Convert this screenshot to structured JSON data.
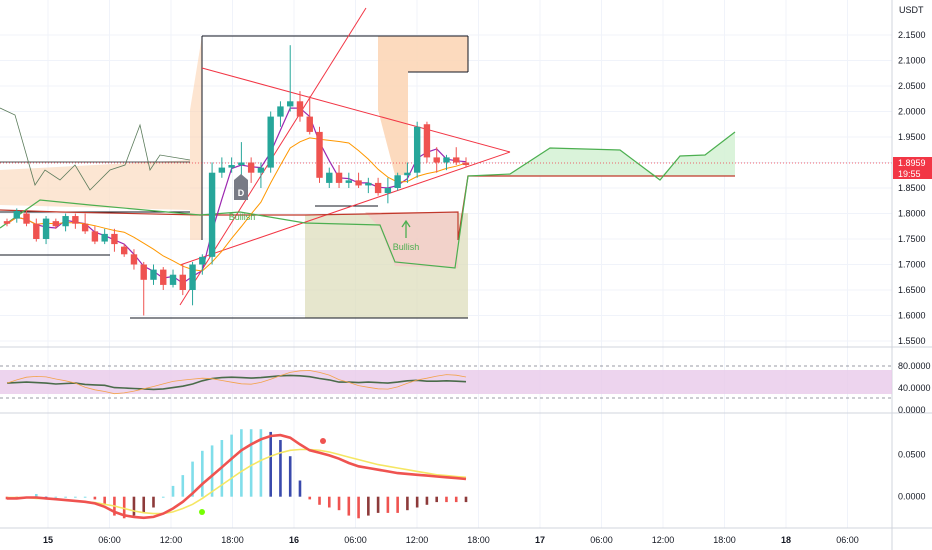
{
  "header": {
    "currency": "USDT"
  },
  "price_axis": {
    "ticks": [
      "2.1500",
      "2.1000",
      "2.0500",
      "2.0000",
      "1.9500",
      "1.9000",
      "1.8500",
      "1.8000",
      "1.7500",
      "1.7000",
      "1.6500",
      "1.6000",
      "1.5500"
    ],
    "last_price": "1.8959",
    "countdown": "19:55"
  },
  "rsi_axis": {
    "ticks": [
      "80.0000",
      "40.0000",
      "0.0000"
    ]
  },
  "macd_axis": {
    "ticks": [
      "0.0500",
      "0.0000"
    ]
  },
  "time_axis": {
    "labels": [
      "15",
      "06:00",
      "12:00",
      "18:00",
      "16",
      "06:00",
      "12:00",
      "18:00",
      "17",
      "06:00",
      "12:00",
      "18:00",
      "18",
      "06:00"
    ]
  },
  "annotations": {
    "d_label": "D",
    "bullish_1": "Bullish",
    "bullish_2": "Bullish"
  },
  "colors": {
    "up": "#26a69a",
    "down": "#ef5350",
    "accent_red": "#f23645",
    "green": "#4caf50"
  },
  "chart_data": {
    "type": "candlestick",
    "price_range": [
      1.55,
      2.15
    ],
    "candles": [
      [
        1.785,
        1.79,
        1.775,
        1.78
      ],
      [
        1.79,
        1.81,
        1.782,
        1.805
      ],
      [
        1.8,
        1.805,
        1.775,
        1.78
      ],
      [
        1.78,
        1.79,
        1.745,
        1.75
      ],
      [
        1.75,
        1.795,
        1.74,
        1.79
      ],
      [
        1.785,
        1.79,
        1.77,
        1.775
      ],
      [
        1.775,
        1.8,
        1.765,
        1.795
      ],
      [
        1.795,
        1.8,
        1.77,
        1.78
      ],
      [
        1.78,
        1.8,
        1.76,
        1.765
      ],
      [
        1.765,
        1.775,
        1.74,
        1.745
      ],
      [
        1.745,
        1.77,
        1.74,
        1.76
      ],
      [
        1.76,
        1.77,
        1.725,
        1.74
      ],
      [
        1.735,
        1.74,
        1.715,
        1.72
      ],
      [
        1.72,
        1.73,
        1.69,
        1.7
      ],
      [
        1.7,
        1.705,
        1.6,
        1.67
      ],
      [
        1.67,
        1.7,
        1.66,
        1.69
      ],
      [
        1.69,
        1.695,
        1.65,
        1.66
      ],
      [
        1.66,
        1.69,
        1.655,
        1.68
      ],
      [
        1.68,
        1.7,
        1.64,
        1.65
      ],
      [
        1.65,
        1.705,
        1.62,
        1.7
      ],
      [
        1.7,
        1.72,
        1.68,
        1.715
      ],
      [
        1.715,
        1.9,
        1.7,
        1.88
      ],
      [
        1.88,
        1.91,
        1.87,
        1.89
      ],
      [
        1.89,
        1.91,
        1.88,
        1.895
      ],
      [
        1.895,
        1.94,
        1.86,
        1.9
      ],
      [
        1.9,
        1.91,
        1.86,
        1.88
      ],
      [
        1.88,
        1.9,
        1.85,
        1.89
      ],
      [
        1.89,
        2.0,
        1.88,
        1.99
      ],
      [
        1.99,
        2.02,
        1.97,
        2.01
      ],
      [
        2.01,
        2.13,
        2.0,
        2.02
      ],
      [
        2.02,
        2.04,
        1.98,
        1.99
      ],
      [
        1.99,
        2.03,
        1.955,
        1.96
      ],
      [
        1.96,
        1.97,
        1.86,
        1.87
      ],
      [
        1.86,
        1.89,
        1.85,
        1.88
      ],
      [
        1.88,
        1.895,
        1.85,
        1.86
      ],
      [
        1.86,
        1.88,
        1.85,
        1.865
      ],
      [
        1.865,
        1.88,
        1.85,
        1.855
      ],
      [
        1.855,
        1.87,
        1.84,
        1.86
      ],
      [
        1.86,
        1.87,
        1.835,
        1.84
      ],
      [
        1.84,
        1.87,
        1.82,
        1.85
      ],
      [
        1.85,
        1.88,
        1.845,
        1.875
      ],
      [
        1.875,
        1.9,
        1.86,
        1.88
      ],
      [
        1.88,
        1.98,
        1.87,
        1.97
      ],
      [
        1.975,
        1.98,
        1.9,
        1.91
      ],
      [
        1.91,
        1.93,
        1.88,
        1.9
      ],
      [
        1.9,
        1.915,
        1.885,
        1.91
      ],
      [
        1.91,
        1.93,
        1.895,
        1.9
      ],
      [
        1.9,
        1.91,
        1.89,
        1.895
      ]
    ],
    "rsi": [
      50,
      51,
      52,
      51,
      50,
      48,
      49,
      50,
      47,
      46,
      45,
      40,
      39,
      38,
      37,
      36,
      37,
      40,
      43,
      48,
      55,
      60,
      62,
      63,
      62,
      61,
      62,
      64,
      66,
      67,
      66,
      64,
      60,
      57,
      52,
      52,
      51,
      52,
      51,
      50,
      52,
      55,
      56,
      54,
      54,
      55,
      54,
      53
    ],
    "macd_line": [
      -0.002,
      -0.002,
      -0.001,
      -0.001,
      -0.002,
      -0.003,
      -0.004,
      -0.005,
      -0.006,
      -0.008,
      -0.012,
      -0.018,
      -0.022,
      -0.024,
      -0.025,
      -0.024,
      -0.02,
      -0.014,
      -0.006,
      0.004,
      0.015,
      0.025,
      0.035,
      0.045,
      0.055,
      0.062,
      0.068,
      0.072,
      0.073,
      0.07,
      0.062,
      0.055,
      0.052,
      0.049,
      0.045,
      0.04,
      0.036,
      0.034,
      0.032,
      0.03,
      0.028,
      0.027,
      0.026,
      0.025,
      0.024,
      0.023,
      0.022,
      0.021
    ],
    "signal_line": [
      -0.001,
      -0.001,
      -0.001,
      -0.002,
      -0.002,
      -0.003,
      -0.004,
      -0.005,
      -0.006,
      -0.007,
      -0.009,
      -0.011,
      -0.014,
      -0.017,
      -0.019,
      -0.02,
      -0.02,
      -0.018,
      -0.014,
      -0.009,
      -0.002,
      0.006,
      0.014,
      0.022,
      0.03,
      0.037,
      0.043,
      0.048,
      0.052,
      0.055,
      0.056,
      0.056,
      0.055,
      0.053,
      0.05,
      0.047,
      0.044,
      0.041,
      0.038,
      0.036,
      0.034,
      0.032,
      0.03,
      0.028,
      0.026,
      0.025,
      0.024,
      0.023
    ],
    "macd_range": [
      -0.03,
      0.085
    ]
  }
}
